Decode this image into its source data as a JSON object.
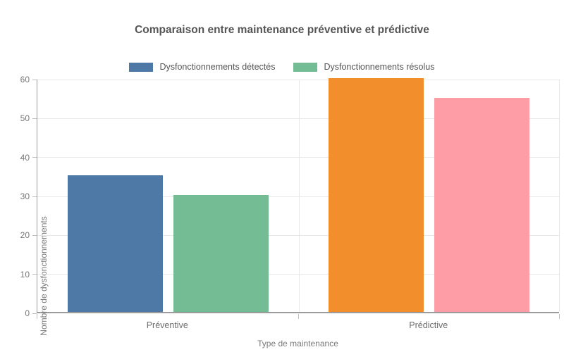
{
  "chart_data": {
    "type": "bar",
    "title": "Comparaison entre maintenance préventive et prédictive",
    "xlabel": "Type de maintenance",
    "ylabel": "Nombre de dysfonctionnements",
    "categories": [
      "Préventive",
      "Prédictive"
    ],
    "series": [
      {
        "name": "Dysfonctionnements détectés",
        "values": [
          35,
          60
        ]
      },
      {
        "name": "Dysfonctionnements résolus",
        "values": [
          30,
          55
        ]
      }
    ],
    "bar_colors": [
      [
        "#4E79A7",
        "#74BC94"
      ],
      [
        "#F28E2B",
        "#FF9DA7"
      ]
    ],
    "legend": [
      {
        "label": "Dysfonctionnements détectés",
        "color": "#4E79A7"
      },
      {
        "label": "Dysfonctionnements résolus",
        "color": "#74BC94"
      }
    ],
    "legend_position": "top-center",
    "ylim": [
      0,
      60
    ],
    "yticks": [
      0,
      10,
      20,
      30,
      40,
      50,
      60
    ],
    "grid": true,
    "background_color": "#ffffff",
    "axis_color": "#9b9b9b",
    "gridline_color": "#e8e8e8"
  }
}
